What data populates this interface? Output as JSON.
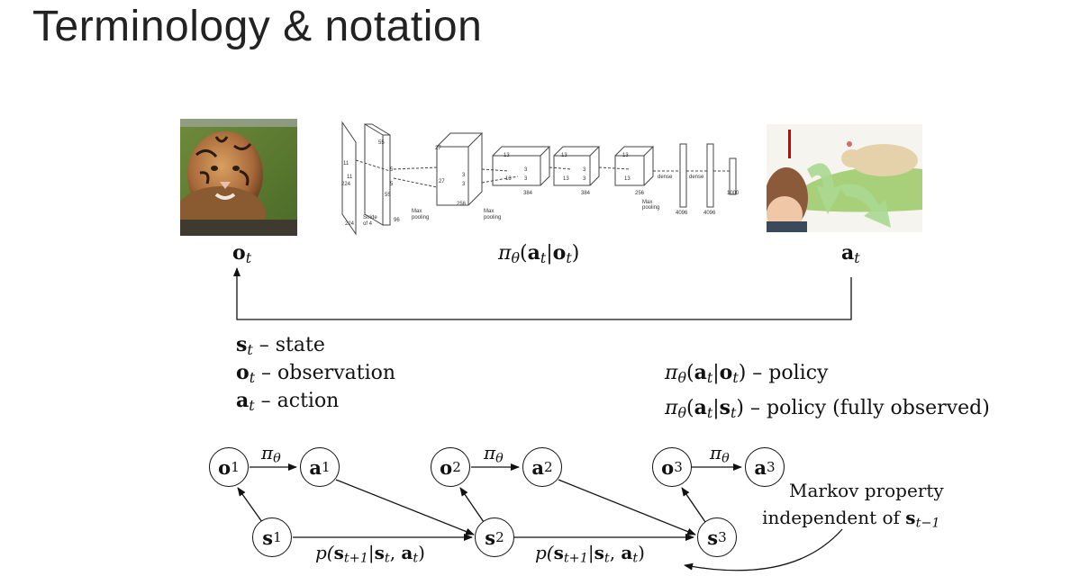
{
  "title": "Terminology & notation",
  "top_labels": {
    "observation": {
      "sym": "o",
      "sub": "t"
    },
    "policy": {
      "pi": "π",
      "theta": "θ",
      "open": "(",
      "a": "a",
      "a_sub": "t",
      "bar": "|",
      "o": "o",
      "o_sub": "t",
      "close": ")"
    },
    "action": {
      "sym": "a",
      "sub": "t"
    }
  },
  "network_labels": [
    "11",
    "11",
    "224",
    "224",
    "Stride",
    "of 4",
    "5",
    "5",
    "55",
    "55",
    "96",
    "Max",
    "pooling",
    "27",
    "27",
    "256",
    "Max",
    "pooling",
    "3",
    "3",
    "13",
    "13",
    "384",
    "3",
    "3",
    "13",
    "13",
    "384",
    "3",
    "3",
    "13",
    "13",
    "256",
    "Max",
    "pooling",
    "dense",
    "dense",
    "4096",
    "4096",
    "1000"
  ],
  "definitions": [
    {
      "sym": "s",
      "sub": "t",
      "text": " – state"
    },
    {
      "sym": "o",
      "sub": "t",
      "text": " – observation"
    },
    {
      "sym": "a",
      "sub": "t",
      "text": " – action"
    }
  ],
  "policies": [
    {
      "cond": "o",
      "text": " – policy"
    },
    {
      "cond": "s",
      "text": " – policy (fully observed)"
    }
  ],
  "graph": {
    "obs_nodes": [
      {
        "sym": "o",
        "sub": "1"
      },
      {
        "sym": "o",
        "sub": "2"
      },
      {
        "sym": "o",
        "sub": "3"
      }
    ],
    "act_nodes": [
      {
        "sym": "a",
        "sub": "1"
      },
      {
        "sym": "a",
        "sub": "2"
      },
      {
        "sym": "a",
        "sub": "3"
      }
    ],
    "state_nodes": [
      {
        "sym": "s",
        "sub": "1"
      },
      {
        "sym": "s",
        "sub": "2"
      },
      {
        "sym": "s",
        "sub": "3"
      }
    ],
    "policy_edge_label": {
      "pi": "π",
      "sub": "θ"
    },
    "transition_label": {
      "p": "p(",
      "s_next": "s",
      "next_sub": "t+1",
      "bar": "|",
      "s": "s",
      "s_sub": "t",
      ",": ", ",
      "a": "a",
      "a_sub": "t",
      "close": ")"
    },
    "markov_line1": "Markov property",
    "markov_line2": "independent of ",
    "markov_sym": "s",
    "markov_sub": "t−1"
  }
}
